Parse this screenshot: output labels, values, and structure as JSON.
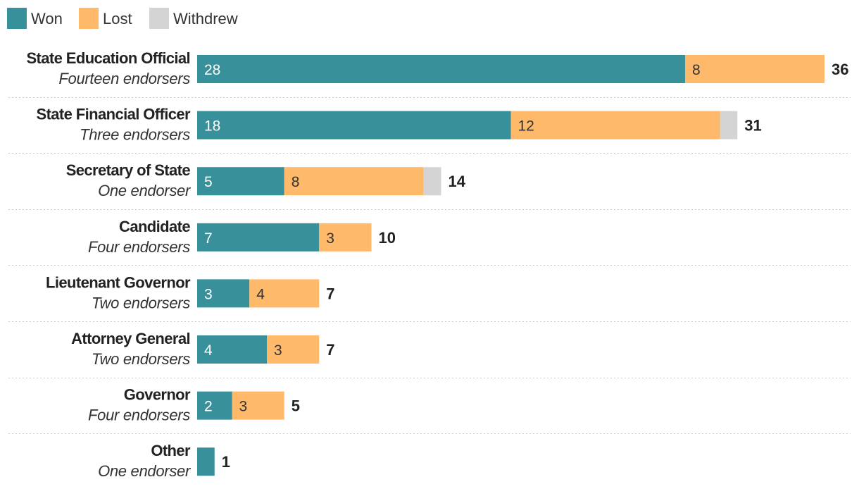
{
  "chart_data": {
    "type": "bar",
    "orientation": "horizontal",
    "stacked": true,
    "title": "",
    "xlabel": "",
    "ylabel": "",
    "xlim": [
      0,
      36
    ],
    "grid": false,
    "legend": "top-left",
    "categories": [
      "State Education Official",
      "State Financial Officer",
      "Secretary of State",
      "Candidate",
      "Lieutenant Governor",
      "Attorney General",
      "Governor",
      "Other"
    ],
    "subtitles": [
      "Fourteen endorsers",
      "Three endorsers",
      "One endorser",
      "Four endorsers",
      "Two endorsers",
      "Two endorsers",
      "Four endorsers",
      "One endorser"
    ],
    "series": [
      {
        "name": "Won",
        "color": "#37909a",
        "label_color": "#ffffff",
        "values": [
          28,
          18,
          5,
          7,
          3,
          4,
          2,
          1
        ]
      },
      {
        "name": "Lost",
        "color": "#ffb96a",
        "label_color": "#333333",
        "values": [
          8,
          12,
          8,
          3,
          4,
          3,
          3,
          0
        ]
      },
      {
        "name": "Withdrew",
        "color": "#d4d4d4",
        "label_color": "#333333",
        "values": [
          0,
          1,
          1,
          0,
          0,
          0,
          0,
          0
        ]
      }
    ],
    "segment_labels": [
      [
        "28",
        "8",
        ""
      ],
      [
        "18",
        "12",
        ""
      ],
      [
        "5",
        "8",
        ""
      ],
      [
        "7",
        "3",
        ""
      ],
      [
        "3",
        "4",
        ""
      ],
      [
        "4",
        "3",
        ""
      ],
      [
        "2",
        "3",
        ""
      ],
      [
        "",
        "",
        ""
      ]
    ],
    "totals": [
      36,
      31,
      14,
      10,
      7,
      7,
      5,
      1
    ]
  }
}
